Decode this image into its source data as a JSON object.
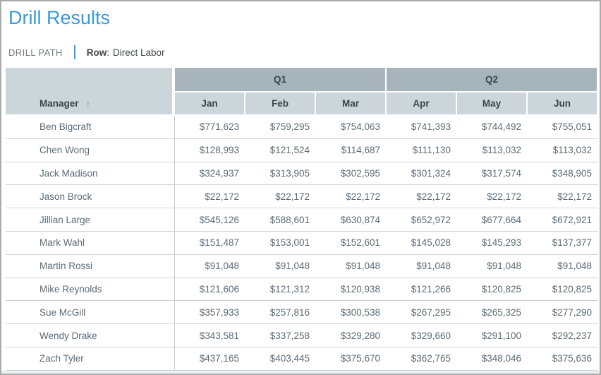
{
  "page": {
    "title": "Drill Results"
  },
  "drill_path": {
    "label": "DRILL PATH",
    "row_label": "Row",
    "colon": ":",
    "row_value": "Direct Labor"
  },
  "colors": {
    "accent_blue": "#3B9AD9",
    "group_header_bg": "#A8B4BC",
    "sub_header_bg": "#CBD5DA",
    "header_text": "#3A454D",
    "body_text": "#5C6B75",
    "sort_arrow": "#6E9BE8",
    "row_border": "#D0D0D0"
  },
  "table": {
    "manager_header": "Manager",
    "sort_icon": "↑",
    "sort_direction": "ascending",
    "groups": [
      {
        "label": "Q1",
        "months": [
          "Jan",
          "Feb",
          "Mar"
        ]
      },
      {
        "label": "Q2",
        "months": [
          "Apr",
          "May",
          "Jun"
        ]
      }
    ],
    "rows": [
      {
        "manager": "Ben Bigcraft",
        "values": [
          "$771,623",
          "$759,295",
          "$754,063",
          "$741,393",
          "$744,492",
          "$755,051"
        ]
      },
      {
        "manager": "Chen Wong",
        "values": [
          "$128,993",
          "$121,524",
          "$114,687",
          "$111,130",
          "$113,032",
          "$113,032"
        ]
      },
      {
        "manager": "Jack Madison",
        "values": [
          "$324,937",
          "$313,905",
          "$302,595",
          "$301,324",
          "$317,574",
          "$348,905"
        ]
      },
      {
        "manager": "Jason Brock",
        "values": [
          "$22,172",
          "$22,172",
          "$22,172",
          "$22,172",
          "$22,172",
          "$22,172"
        ]
      },
      {
        "manager": "Jillian Large",
        "values": [
          "$545,126",
          "$588,601",
          "$630,874",
          "$652,972",
          "$677,664",
          "$672,921"
        ]
      },
      {
        "manager": "Mark Wahl",
        "values": [
          "$151,487",
          "$153,001",
          "$152,601",
          "$145,028",
          "$145,293",
          "$137,377"
        ]
      },
      {
        "manager": "Martin Rossi",
        "values": [
          "$91,048",
          "$91,048",
          "$91,048",
          "$91,048",
          "$91,048",
          "$91,048"
        ]
      },
      {
        "manager": "Mike Reynolds",
        "values": [
          "$121,606",
          "$121,312",
          "$120,938",
          "$121,266",
          "$120,825",
          "$120,825"
        ]
      },
      {
        "manager": "Sue McGill",
        "values": [
          "$357,933",
          "$257,816",
          "$300,538",
          "$267,295",
          "$265,325",
          "$277,290"
        ]
      },
      {
        "manager": "Wendy Drake",
        "values": [
          "$343,581",
          "$337,258",
          "$329,280",
          "$329,660",
          "$291,100",
          "$292,237"
        ]
      },
      {
        "manager": "Zach Tyler",
        "values": [
          "$437,165",
          "$403,445",
          "$375,670",
          "$362,765",
          "$348,046",
          "$375,636"
        ]
      }
    ]
  }
}
